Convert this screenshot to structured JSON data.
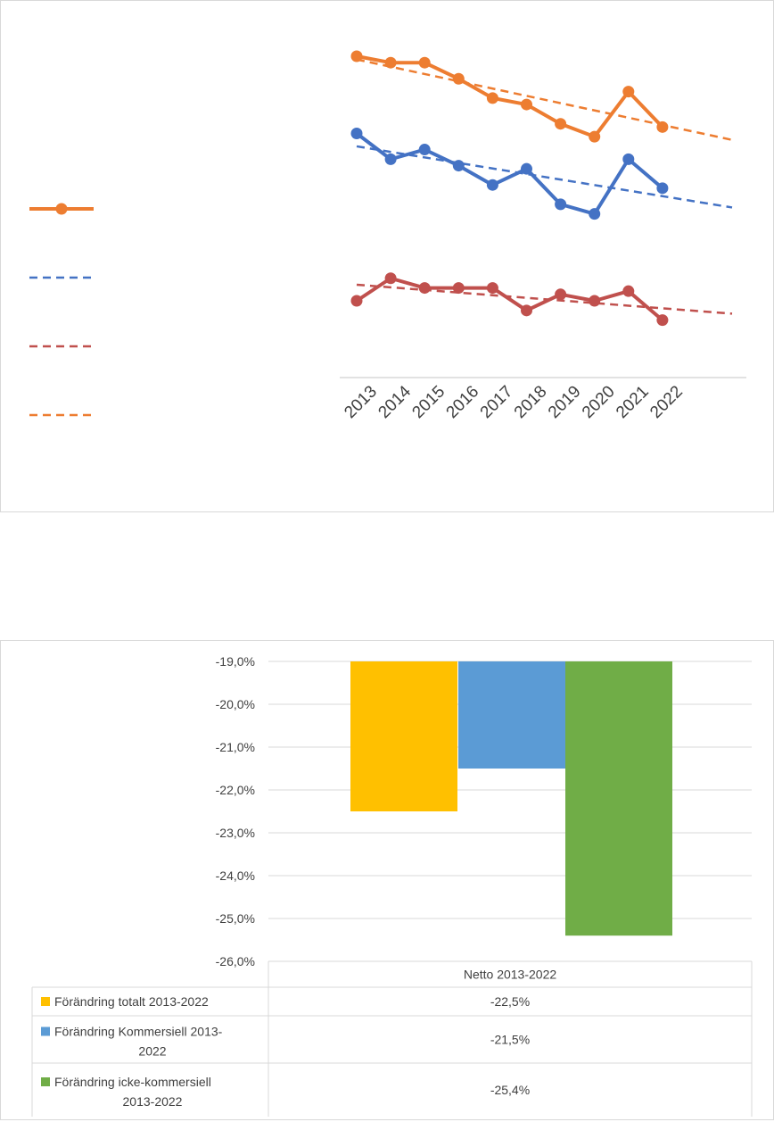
{
  "colors": {
    "orange": "#ED7D31",
    "blue": "#4472C4",
    "red": "#C0504D",
    "gold": "#FFC000",
    "lightblue": "#5B9BD5",
    "green": "#70AD47",
    "grid": "#d9d9d9",
    "text": "#404040"
  },
  "chart_data": [
    {
      "type": "line",
      "x": [
        "2013",
        "2014",
        "2015",
        "2016",
        "2017",
        "2018",
        "2019",
        "2020",
        "2021",
        "2022"
      ],
      "y_axis_shown": false,
      "ylim": [
        0,
        100
      ],
      "legend_placement": "left",
      "legend_entries": [
        {
          "series": "orange",
          "style": "line-marker",
          "color": "#ED7D31"
        },
        {
          "series": "blue-trend",
          "style": "dashed",
          "color": "#4472C4"
        },
        {
          "series": "red-trend",
          "style": "dashed",
          "color": "#C0504D"
        },
        {
          "series": "orange-trend",
          "style": "dashed",
          "color": "#ED7D31"
        }
      ],
      "series": [
        {
          "id": "orange",
          "color": "#ED7D31",
          "values": [
            100,
            98,
            98,
            93,
            87,
            85,
            79,
            75,
            89,
            78
          ]
        },
        {
          "id": "blue",
          "color": "#4472C4",
          "values": [
            76,
            68,
            71,
            66,
            60,
            65,
            54,
            51,
            68,
            59
          ]
        },
        {
          "id": "red",
          "color": "#C0504D",
          "values": [
            24,
            31,
            28,
            28,
            28,
            21,
            26,
            24,
            27,
            18
          ]
        }
      ],
      "trendlines": [
        {
          "id": "orange-trend",
          "color": "#ED7D31",
          "start": 99,
          "end": 74
        },
        {
          "id": "blue-trend",
          "color": "#4472C4",
          "start": 72,
          "end": 53
        },
        {
          "id": "red-trend",
          "color": "#C0504D",
          "start": 29,
          "end": 20
        }
      ]
    },
    {
      "type": "bar",
      "title": "",
      "categories": [
        "Netto 2013-2022"
      ],
      "ylim": [
        -26.0,
        -19.0
      ],
      "yticks": [
        "-19,0%",
        "-20,0%",
        "-21,0%",
        "-22,0%",
        "-23,0%",
        "-24,0%",
        "-25,0%",
        "-26,0%"
      ],
      "series": [
        {
          "name": "Förändring totalt 2013-2022",
          "values": [
            -22.5
          ],
          "label": "-22,5%",
          "color": "#FFC000"
        },
        {
          "name": "Förändring Kommersiell 2013-2022",
          "values": [
            -21.5
          ],
          "label": "-21,5%",
          "color": "#5B9BD5"
        },
        {
          "name": "Förändring icke-kommersiell 2013-2022",
          "values": [
            -25.4
          ],
          "label": "-25,4%",
          "color": "#70AD47"
        }
      ],
      "table": {
        "header": "Netto 2013-2022",
        "rows": [
          {
            "name_lines": [
              "Förändring totalt 2013-2022"
            ],
            "value": "-22,5%"
          },
          {
            "name_lines": [
              "Förändring Kommersiell 2013-",
              "2022"
            ],
            "value": "-21,5%"
          },
          {
            "name_lines": [
              "Förändring icke-kommersiell",
              "2013-2022"
            ],
            "value": "-25,4%"
          }
        ]
      }
    }
  ]
}
